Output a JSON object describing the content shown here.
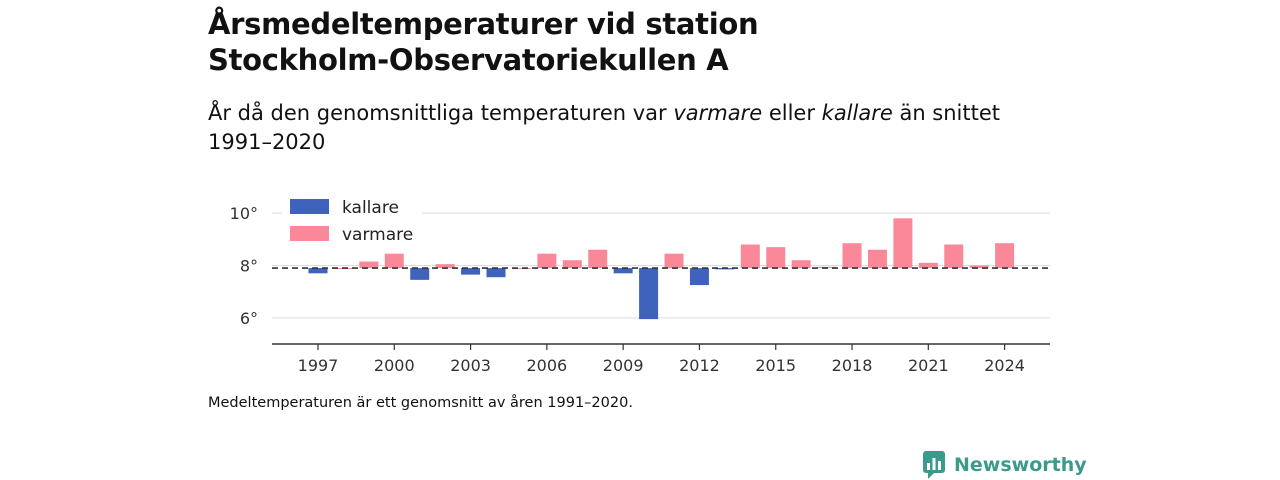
{
  "title_line1": "Årsmedeltemperaturer vid station",
  "title_line2": "Stockholm-Observatoriekullen A",
  "subtitle": {
    "part1": "År då den genomsnittliga temperaturen var ",
    "warm_word": "varmare",
    "part2": " eller ",
    "cold_word": "kallare",
    "part3": " än snittet 1991–2020"
  },
  "note": "Medeltemperaturen är ett genomsnitt av åren 1991–2020.",
  "brand": "Newsworthy",
  "colors": {
    "cold": "#3f62bd",
    "warm": "#fb8898",
    "brand": "#3a9a8c"
  },
  "chart_data": {
    "type": "bar",
    "baseline": 7.9,
    "ylim": [
      5,
      10.5
    ],
    "yticks": [
      6,
      8,
      10
    ],
    "ytick_labels": [
      "6°",
      "8°",
      "10°"
    ],
    "xticks": [
      1997,
      2000,
      2003,
      2006,
      2009,
      2012,
      2015,
      2018,
      2021,
      2024
    ],
    "xtick_labels": [
      "1997",
      "2000",
      "2003",
      "2006",
      "2009",
      "2012",
      "2015",
      "2018",
      "2021",
      "2024"
    ],
    "legend": {
      "cold": "kallare",
      "warm": "varmare",
      "placement": "top-left"
    },
    "grid": true,
    "years": [
      1997,
      1998,
      1999,
      2000,
      2001,
      2002,
      2003,
      2004,
      2005,
      2006,
      2007,
      2008,
      2009,
      2010,
      2011,
      2012,
      2013,
      2014,
      2015,
      2016,
      2017,
      2018,
      2019,
      2020,
      2021,
      2022,
      2023,
      2024
    ],
    "values": [
      7.7,
      7.9,
      8.15,
      8.45,
      7.45,
      8.05,
      7.65,
      7.55,
      7.9,
      8.45,
      8.2,
      8.6,
      7.7,
      5.95,
      8.45,
      7.25,
      7.85,
      8.8,
      8.7,
      8.2,
      7.95,
      8.85,
      8.6,
      9.8,
      8.1,
      8.8,
      8.0,
      8.85
    ]
  }
}
